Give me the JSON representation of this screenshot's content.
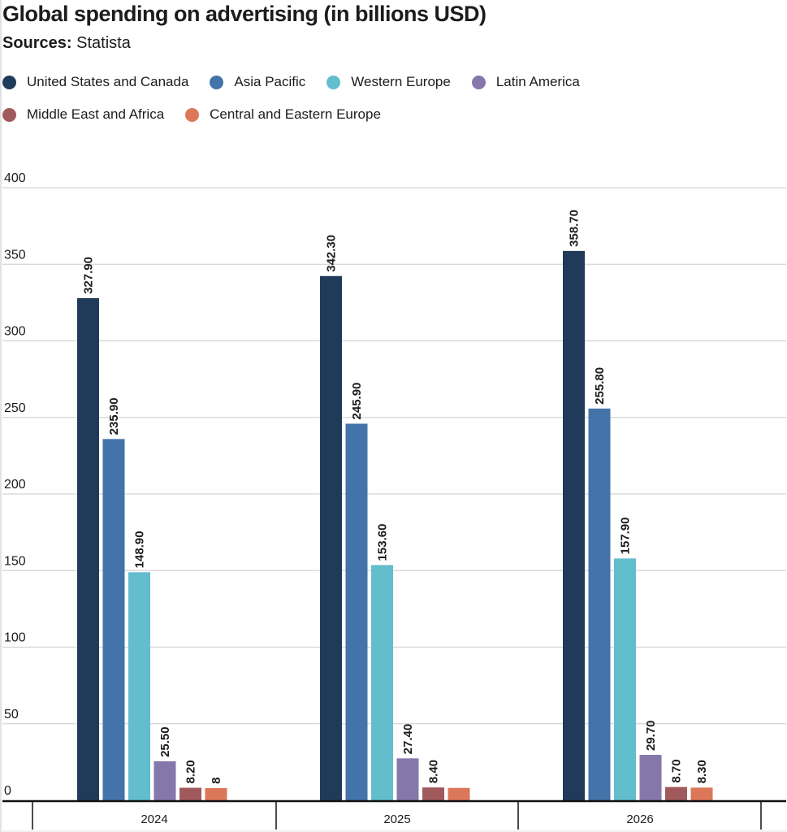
{
  "chart_data": {
    "type": "bar",
    "title": "Global spending on advertising (in billions USD)",
    "sources_label": "Sources:",
    "sources_value": "Statista",
    "xlabel": "",
    "ylabel": "",
    "ylim": [
      0,
      400
    ],
    "yticks": [
      0,
      50,
      100,
      150,
      200,
      250,
      300,
      350,
      400
    ],
    "grid": true,
    "legend_position": "top-left",
    "categories": [
      "2024",
      "2025",
      "2026"
    ],
    "series": [
      {
        "name": "United States and Canada",
        "color": "#203a5a",
        "values": [
          327.9,
          342.3,
          358.7
        ],
        "labels": [
          "327.90",
          "342.30",
          "358.70"
        ]
      },
      {
        "name": "Asia Pacific",
        "color": "#4473aa",
        "values": [
          235.9,
          245.9,
          255.8
        ],
        "labels": [
          "235.90",
          "245.90",
          "255.80"
        ]
      },
      {
        "name": "Western Europe",
        "color": "#62bdcd",
        "values": [
          148.9,
          153.6,
          157.9
        ],
        "labels": [
          "148.90",
          "153.60",
          "157.90"
        ]
      },
      {
        "name": "Latin America",
        "color": "#8677ab",
        "values": [
          25.5,
          27.4,
          29.7
        ],
        "labels": [
          "25.50",
          "27.40",
          "29.70"
        ]
      },
      {
        "name": "Middle East and Africa",
        "color": "#a15a5c",
        "values": [
          8.2,
          8.4,
          8.7
        ],
        "labels": [
          "8.20",
          "8.40",
          "8.70"
        ]
      },
      {
        "name": "Central and Eastern Europe",
        "color": "#dc7759",
        "values": [
          8.0,
          8.1,
          8.3
        ],
        "labels": [
          "8",
          "",
          "8.30"
        ]
      }
    ]
  }
}
